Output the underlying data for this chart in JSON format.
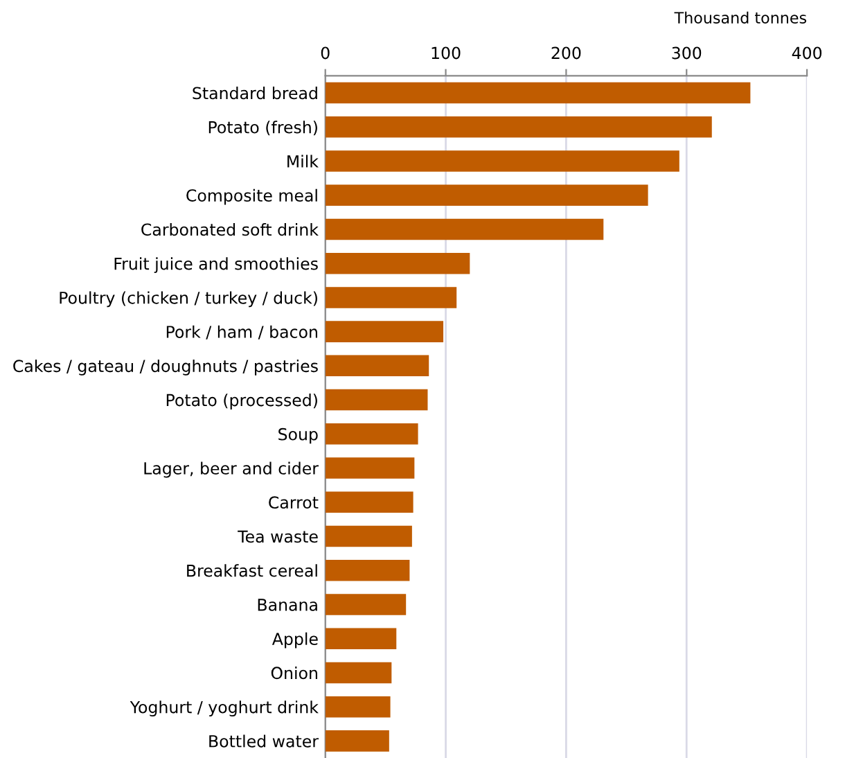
{
  "chart_data": {
    "type": "bar",
    "orientation": "horizontal",
    "xlabel": "Thousand tonnes",
    "categories": [
      "Standard bread",
      "Potato (fresh)",
      "Milk",
      "Composite meal",
      "Carbonated soft drink",
      "Fruit juice and smoothies",
      "Poultry (chicken / turkey / duck)",
      "Pork / ham / bacon",
      "Cakes / gateau / doughnuts / pastries",
      "Potato (processed)",
      "Soup",
      "Lager, beer and cider",
      "Carrot",
      "Tea waste",
      "Breakfast cereal",
      "Banana",
      "Apple",
      "Onion",
      "Yoghurt / yoghurt drink",
      "Bottled water"
    ],
    "values": [
      353,
      321,
      294,
      268,
      231,
      120,
      109,
      98,
      86,
      85,
      77,
      74,
      73,
      72,
      70,
      67,
      59,
      55,
      54,
      53
    ],
    "color": "#c05c00",
    "xlim": [
      0,
      400
    ],
    "xticks": [
      0,
      100,
      200,
      300,
      400
    ],
    "grid": "x",
    "legend": false
  }
}
